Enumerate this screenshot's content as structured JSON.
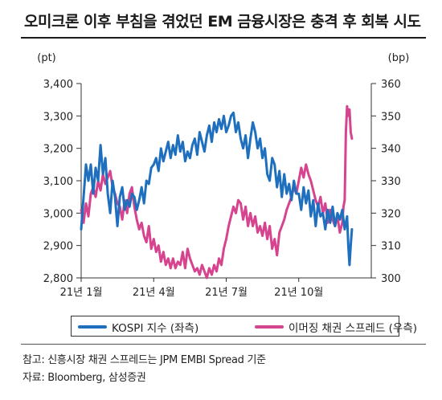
{
  "title": "오미크론 이후 부침을 겪었던 EM 금융시장은 충격 후 회복 시도",
  "chart_data": {
    "type": "line",
    "left_unit": "(pt)",
    "right_unit": "(bp)",
    "left_axis": {
      "min": 2800,
      "max": 3400,
      "ticks": [
        "3,400",
        "3,300",
        "3,200",
        "3,100",
        "3,000",
        "2,900",
        "2,800"
      ]
    },
    "right_axis": {
      "min": 300,
      "max": 360,
      "ticks": [
        "360",
        "350",
        "340",
        "330",
        "320",
        "310",
        "300"
      ]
    },
    "x_ticks": [
      "21년 1월",
      "21년 4월",
      "21년 7월",
      "21년 10월"
    ],
    "x_domain": [
      0,
      12
    ],
    "x_tick_positions": [
      0,
      3,
      6,
      9
    ],
    "series": [
      {
        "name": "KOSPI 지수 (좌측)",
        "axis": "left",
        "color": "#1f6fbf",
        "x": [
          0.0,
          0.1,
          0.2,
          0.3,
          0.4,
          0.5,
          0.6,
          0.7,
          0.8,
          0.9,
          1.0,
          1.1,
          1.2,
          1.3,
          1.4,
          1.5,
          1.6,
          1.7,
          1.8,
          1.9,
          2.0,
          2.1,
          2.2,
          2.3,
          2.4,
          2.5,
          2.6,
          2.7,
          2.8,
          2.9,
          3.0,
          3.1,
          3.2,
          3.3,
          3.4,
          3.5,
          3.6,
          3.7,
          3.8,
          3.9,
          4.0,
          4.1,
          4.2,
          4.3,
          4.4,
          4.5,
          4.6,
          4.7,
          4.8,
          4.9,
          5.0,
          5.1,
          5.2,
          5.3,
          5.4,
          5.5,
          5.6,
          5.7,
          5.8,
          5.9,
          6.0,
          6.1,
          6.2,
          6.3,
          6.4,
          6.5,
          6.6,
          6.7,
          6.8,
          6.9,
          7.0,
          7.1,
          7.2,
          7.3,
          7.4,
          7.5,
          7.6,
          7.7,
          7.8,
          7.9,
          8.0,
          8.1,
          8.2,
          8.3,
          8.4,
          8.5,
          8.6,
          8.7,
          8.8,
          8.9,
          9.0,
          9.1,
          9.2,
          9.3,
          9.4,
          9.5,
          9.6,
          9.7,
          9.8,
          9.9,
          10.0,
          10.1,
          10.2,
          10.3,
          10.4,
          10.5,
          10.6,
          10.7,
          10.8,
          10.9,
          11.0,
          11.05,
          11.1,
          11.15,
          11.2
        ],
        "values": [
          2950,
          3050,
          3150,
          3100,
          3150,
          3060,
          3140,
          3100,
          3210,
          3120,
          3170,
          3060,
          3000,
          3100,
          3050,
          2960,
          3050,
          3080,
          3010,
          3040,
          3020,
          3060,
          3050,
          3010,
          3040,
          3080,
          3030,
          3100,
          3090,
          3140,
          3150,
          3170,
          3130,
          3200,
          3160,
          3190,
          3220,
          3170,
          3210,
          3180,
          3240,
          3190,
          3220,
          3160,
          3190,
          3170,
          3210,
          3230,
          3180,
          3250,
          3220,
          3190,
          3240,
          3270,
          3220,
          3280,
          3250,
          3290,
          3260,
          3300,
          3250,
          3270,
          3300,
          3310,
          3250,
          3280,
          3230,
          3200,
          3240,
          3170,
          3230,
          3280,
          3250,
          3200,
          3230,
          3170,
          3200,
          3120,
          3100,
          3170,
          3150,
          3080,
          3130,
          3050,
          3120,
          3060,
          3090,
          3040,
          3100,
          3060,
          3060,
          3010,
          3080,
          3030,
          3070,
          2990,
          3040,
          2960,
          3030,
          2990,
          3000,
          2950,
          3010,
          2970,
          3020,
          2960,
          3000,
          2980,
          3010,
          2950,
          2990,
          2900,
          2840,
          2900,
          2950
        ]
      },
      {
        "name": "이머징 채권 스프레드 (우측)",
        "axis": "right",
        "color": "#d6438f",
        "x": [
          0.0,
          0.1,
          0.2,
          0.3,
          0.4,
          0.5,
          0.6,
          0.7,
          0.8,
          0.9,
          1.0,
          1.1,
          1.2,
          1.3,
          1.4,
          1.5,
          1.6,
          1.7,
          1.8,
          1.9,
          2.0,
          2.1,
          2.2,
          2.3,
          2.4,
          2.5,
          2.6,
          2.7,
          2.8,
          2.9,
          3.0,
          3.1,
          3.2,
          3.3,
          3.4,
          3.5,
          3.6,
          3.7,
          3.8,
          3.9,
          4.0,
          4.1,
          4.2,
          4.3,
          4.4,
          4.5,
          4.6,
          4.7,
          4.8,
          4.9,
          5.0,
          5.1,
          5.2,
          5.3,
          5.4,
          5.5,
          5.6,
          5.7,
          5.8,
          5.9,
          6.0,
          6.1,
          6.2,
          6.3,
          6.4,
          6.5,
          6.6,
          6.7,
          6.8,
          6.9,
          7.0,
          7.1,
          7.2,
          7.3,
          7.4,
          7.5,
          7.6,
          7.7,
          7.8,
          7.9,
          8.0,
          8.1,
          8.2,
          8.3,
          8.4,
          8.5,
          8.6,
          8.7,
          8.8,
          8.9,
          9.0,
          9.1,
          9.2,
          9.3,
          9.4,
          9.5,
          9.6,
          9.7,
          9.8,
          9.9,
          10.0,
          10.1,
          10.2,
          10.3,
          10.4,
          10.5,
          10.6,
          10.7,
          10.8,
          10.85,
          10.9,
          10.95,
          11.0,
          11.05,
          11.1,
          11.15,
          11.2
        ],
        "values": [
          321,
          317,
          323,
          319,
          326,
          328,
          325,
          330,
          327,
          332,
          329,
          331,
          333,
          328,
          326,
          323,
          322,
          318,
          324,
          320,
          326,
          328,
          322,
          318,
          315,
          317,
          313,
          311,
          316,
          309,
          312,
          308,
          310,
          305,
          308,
          304,
          306,
          303,
          306,
          303,
          305,
          304,
          308,
          303,
          309,
          306,
          304,
          302,
          303,
          301,
          304,
          302,
          300,
          303,
          301,
          304,
          302,
          306,
          304,
          309,
          312,
          316,
          319,
          322,
          320,
          324,
          323,
          318,
          322,
          316,
          320,
          316,
          319,
          314,
          316,
          313,
          317,
          312,
          316,
          309,
          312,
          307,
          314,
          316,
          318,
          321,
          323,
          325,
          328,
          326,
          330,
          334,
          331,
          335,
          332,
          330,
          327,
          324,
          322,
          325,
          320,
          323,
          317,
          321,
          318,
          316,
          319,
          314,
          317,
          322,
          324,
          345,
          353,
          350,
          352,
          345,
          343
        ]
      }
    ],
    "grid": false,
    "legend_position": "bottom"
  },
  "legend": {
    "kospi": "KOSPI 지수 (좌측)",
    "spread": "이머징 채권 스프레드 (우측)"
  },
  "notes": {
    "note": "참고: 신흥시장 채권 스프레드는 JPM EMBI Spread 기준",
    "source": "자료: Bloomberg, 삼성증권"
  }
}
